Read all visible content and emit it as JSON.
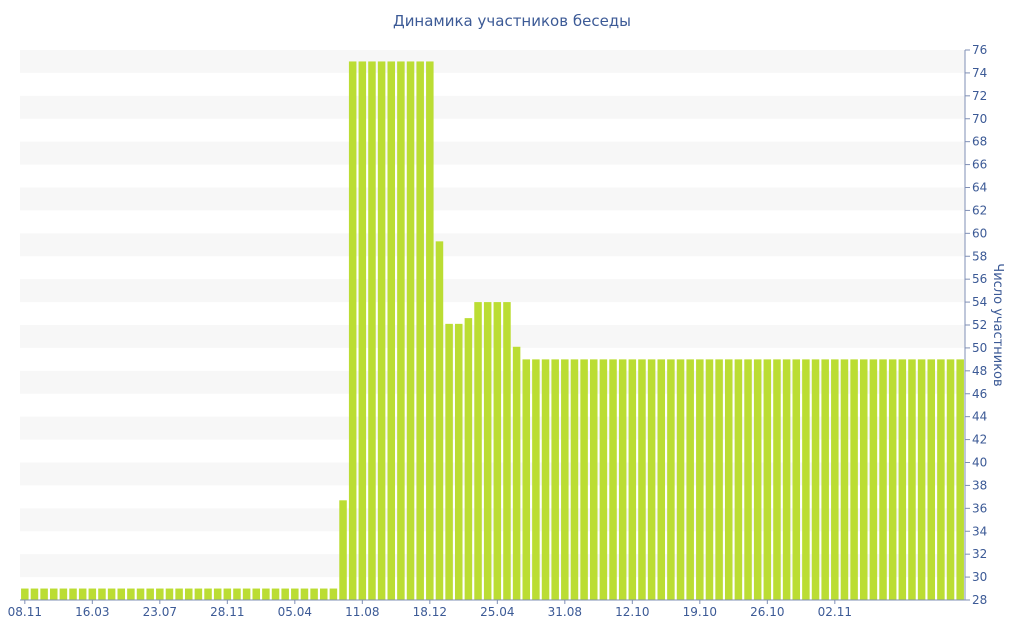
{
  "chart_data": {
    "type": "bar",
    "title": "Динамика участников беседы",
    "xlabel": "",
    "ylabel": "Число участников",
    "y_axis_side": "right",
    "ylim": [
      28,
      76
    ],
    "ytick_step": 2,
    "grid": "horizontal-bands",
    "legend": "none",
    "colors": {
      "bar": "#bbdd33",
      "band": "#f7f7f7",
      "text": "#3c5a96"
    },
    "x_tick_labels": [
      {
        "label": "08.11",
        "index": 0
      },
      {
        "label": "16.03",
        "index": 7
      },
      {
        "label": "23.07",
        "index": 14
      },
      {
        "label": "28.11",
        "index": 21
      },
      {
        "label": "05.04",
        "index": 28
      },
      {
        "label": "11.08",
        "index": 35
      },
      {
        "label": "18.12",
        "index": 42
      },
      {
        "label": "25.04",
        "index": 49
      },
      {
        "label": "31.08",
        "index": 56
      },
      {
        "label": "12.10",
        "index": 63
      },
      {
        "label": "19.10",
        "index": 70
      },
      {
        "label": "26.10",
        "index": 77
      },
      {
        "label": "02.11",
        "index": 84
      }
    ],
    "values": [
      29,
      29,
      29,
      29,
      29,
      29,
      29,
      29,
      29,
      29,
      29,
      29,
      29,
      29,
      29,
      29,
      29,
      29,
      29,
      29,
      29,
      29,
      29,
      29,
      29,
      29,
      29,
      29,
      29,
      29,
      29,
      29,
      29,
      36.7,
      75,
      75,
      75,
      75,
      75,
      75,
      75,
      75,
      75,
      59.3,
      52.1,
      52.1,
      52.6,
      54,
      54,
      54,
      54,
      50.1,
      49,
      49,
      49,
      49,
      49,
      49,
      49,
      49,
      49,
      49,
      49,
      49,
      49,
      49,
      49,
      49,
      49,
      49,
      49,
      49,
      49,
      49,
      49,
      49,
      49,
      49,
      49,
      49,
      49,
      49,
      49,
      49,
      49,
      49,
      49,
      49,
      49,
      49,
      49,
      49,
      49,
      49,
      49,
      49,
      49,
      49
    ]
  }
}
